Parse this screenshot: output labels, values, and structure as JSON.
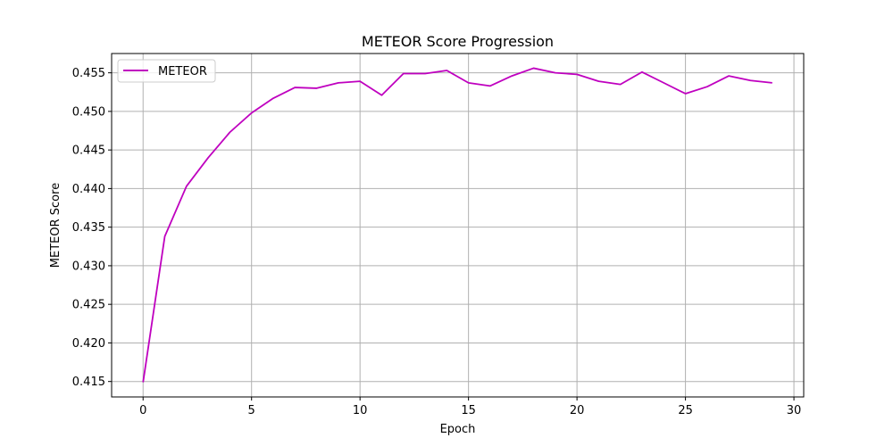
{
  "chart_data": {
    "type": "line",
    "title": "METEOR Score Progression",
    "xlabel": "Epoch",
    "ylabel": "METEOR Score",
    "xlim": [
      -1.45,
      30.45
    ],
    "ylim": [
      0.413,
      0.4575
    ],
    "xticks": [
      0,
      5,
      10,
      15,
      20,
      25,
      30
    ],
    "xtick_labels": [
      "0",
      "5",
      "10",
      "15",
      "20",
      "25",
      "30"
    ],
    "yticks": [
      0.415,
      0.42,
      0.425,
      0.43,
      0.435,
      0.44,
      0.445,
      0.45,
      0.455
    ],
    "ytick_labels": [
      "0.415",
      "0.420",
      "0.425",
      "0.430",
      "0.435",
      "0.440",
      "0.445",
      "0.450",
      "0.455"
    ],
    "grid": true,
    "legend_position": "top-left",
    "series": [
      {
        "name": "METEOR",
        "color": "#bf00bf",
        "x": [
          0,
          1,
          2,
          3,
          4,
          5,
          6,
          7,
          8,
          9,
          10,
          11,
          12,
          13,
          14,
          15,
          16,
          17,
          18,
          19,
          20,
          21,
          22,
          23,
          24,
          25,
          26,
          27,
          28,
          29
        ],
        "values": [
          0.4149,
          0.4338,
          0.4403,
          0.444,
          0.4473,
          0.4498,
          0.4517,
          0.4531,
          0.453,
          0.4537,
          0.4539,
          0.4521,
          0.4549,
          0.4549,
          0.4553,
          0.4537,
          0.4533,
          0.4546,
          0.4556,
          0.455,
          0.4548,
          0.4539,
          0.4535,
          0.4551,
          0.4537,
          0.4523,
          0.4532,
          0.4546,
          0.454,
          0.4537
        ]
      }
    ]
  }
}
